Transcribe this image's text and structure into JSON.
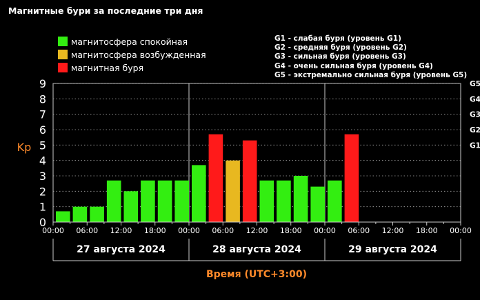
{
  "title": "Магнитные бури за последние три дня",
  "legend": [
    {
      "label": "магнитосфера спокойная",
      "color": "#33ee11"
    },
    {
      "label": "магнитосфера возбужденная",
      "color": "#e8b820"
    },
    {
      "label": "магнитная буря",
      "color": "#ff1a1a"
    }
  ],
  "g_levels": [
    "G1 - слабая буря (уровень G1)",
    "G2 - средняя буря (уровень G2)",
    "G3 - сильная буря (уровень G3)",
    "G4 - очень сильная буря (уровень G4)",
    "G5 - экстремально сильная буря (уровень G5)"
  ],
  "colors": {
    "quiet": "#33ee11",
    "active": "#e8b820",
    "storm": "#ff1a1a",
    "accent": "#ff8a2a"
  },
  "chart_data": {
    "type": "bar",
    "ylabel": "Kp",
    "xlabel": "Время (UTC+3:00)",
    "ylim": [
      0,
      9
    ],
    "yticks": [
      0,
      1,
      2,
      3,
      4,
      5,
      6,
      7,
      8,
      9
    ],
    "right_ticks": [
      {
        "label": "G1",
        "y": 5
      },
      {
        "label": "G2",
        "y": 6
      },
      {
        "label": "G3",
        "y": 7
      },
      {
        "label": "G4",
        "y": 8
      },
      {
        "label": "G5",
        "y": 9
      }
    ],
    "xtick_labels": [
      "00:00",
      "06:00",
      "12:00",
      "18:00",
      "00:00",
      "06:00",
      "12:00",
      "18:00",
      "00:00",
      "06:00",
      "12:00",
      "18:00",
      "00:00"
    ],
    "days": [
      "27 августа 2024",
      "28 августа 2024",
      "29 августа 2024"
    ],
    "grid": true,
    "bars": [
      {
        "value": 0.7,
        "level": "quiet"
      },
      {
        "value": 1.0,
        "level": "quiet"
      },
      {
        "value": 1.0,
        "level": "quiet"
      },
      {
        "value": 2.7,
        "level": "quiet"
      },
      {
        "value": 2.0,
        "level": "quiet"
      },
      {
        "value": 2.7,
        "level": "quiet"
      },
      {
        "value": 2.7,
        "level": "quiet"
      },
      {
        "value": 2.7,
        "level": "quiet"
      },
      {
        "value": 3.7,
        "level": "quiet"
      },
      {
        "value": 5.7,
        "level": "storm"
      },
      {
        "value": 4.0,
        "level": "active"
      },
      {
        "value": 5.3,
        "level": "storm"
      },
      {
        "value": 2.7,
        "level": "quiet"
      },
      {
        "value": 2.7,
        "level": "quiet"
      },
      {
        "value": 3.0,
        "level": "quiet"
      },
      {
        "value": 2.3,
        "level": "quiet"
      },
      {
        "value": 2.7,
        "level": "quiet"
      },
      {
        "value": 5.7,
        "level": "storm"
      }
    ]
  }
}
